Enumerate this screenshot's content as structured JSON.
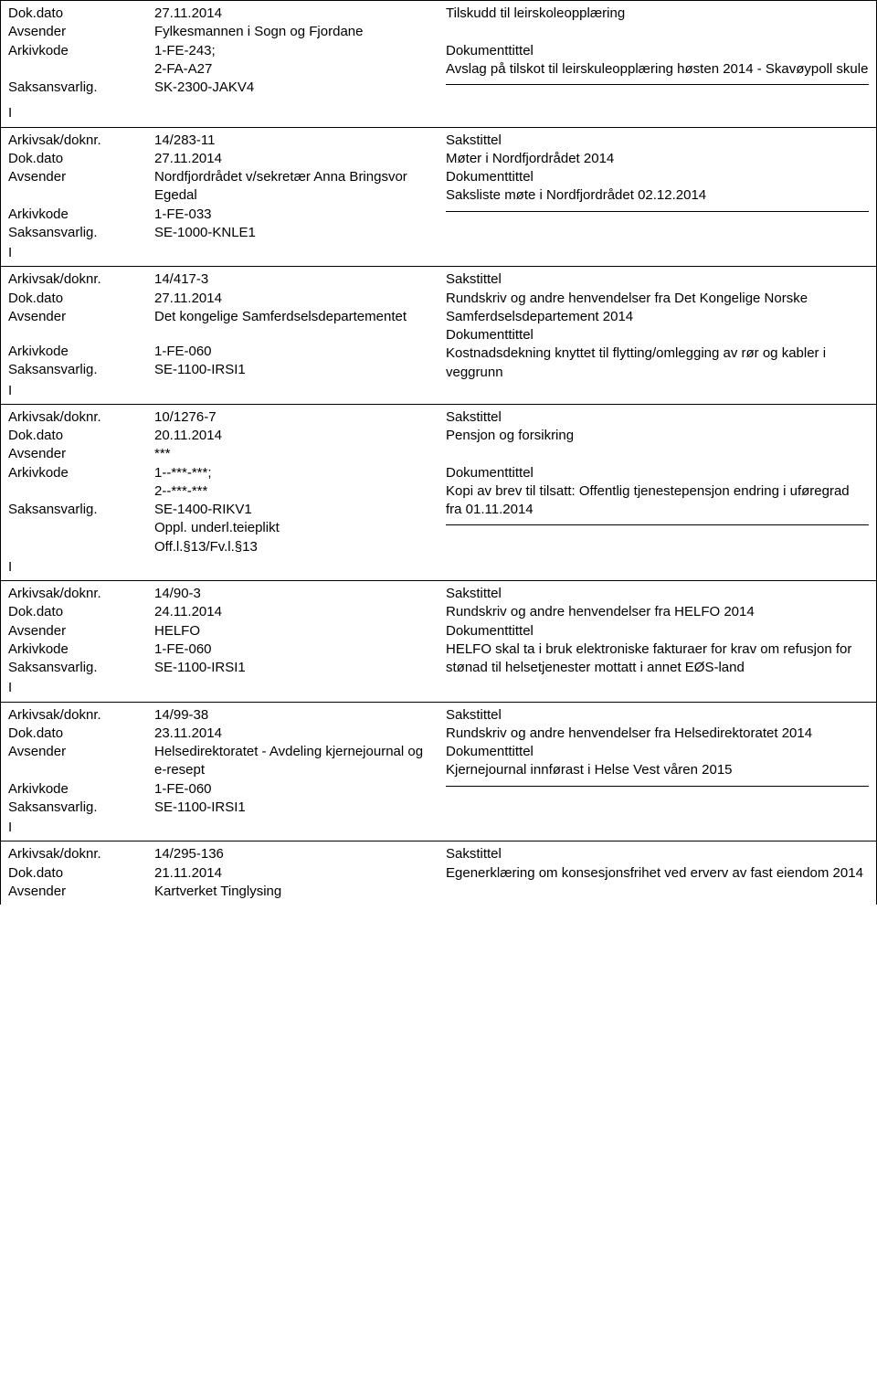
{
  "labels": {
    "dokdato": "Dok.dato",
    "avsender": "Avsender",
    "arkivkode": "Arkivkode",
    "saksansvarlig": "Saksansvarlig.",
    "arkivsak": "Arkivsak/doknr.",
    "marker": "I",
    "sakstittel": "Sakstittel",
    "dokumenttittel": "Dokumenttittel"
  },
  "top": {
    "dokdato": "27.11.2014",
    "avsender": "Fylkesmannen i Sogn og Fjordane",
    "arkivkode": "1-FE-243;\n2-FA-A27",
    "saksansvarlig": "SK-2300-JAKV4",
    "r1": "Tilskudd til leirskoleopplæring",
    "r2": "Avslag på tilskot til leirskuleopplæring høsten 2014 - Skavøypoll skule"
  },
  "records": [
    {
      "arkivsak": "14/283-11",
      "dokdato": "27.11.2014",
      "avsender": "Nordfjordrådet v/sekretær Anna Bringsvor Egedal",
      "arkivkode": "1-FE-033",
      "saksansvarlig": "SE-1000-KNLE1",
      "sakstittel_text": "Møter i Nordfjordrådet 2014",
      "doktittel_text": "Saksliste møte i Nordfjordrådet 02.12.2014",
      "has_trailing_hr": true
    },
    {
      "arkivsak": "14/417-3",
      "dokdato": "27.11.2014",
      "avsender": "Det kongelige Samferdselsdepartementet",
      "arkivkode": "1-FE-060",
      "saksansvarlig": "SE-1100-IRSI1",
      "sakstittel_text": "Rundskriv og andre henvendelser fra Det Kongelige Norske Samferdselsdepartement 2014",
      "doktittel_text": "Kostnadsdekning knyttet til flytting/omlegging av rør og kabler i veggrunn",
      "has_trailing_hr": false,
      "avsender_blank_after": true
    },
    {
      "arkivsak": "10/1276-7",
      "dokdato": "20.11.2014",
      "avsender": "***",
      "arkivkode": "1--***-***;\n2--***-***",
      "saksansvarlig": "SE-1400-RIKV1",
      "extra_lines": [
        "Oppl. underl.teieplikt",
        "Off.l.§13/Fv.l.§13"
      ],
      "sakstittel_text": "Pensjon og forsikring",
      "doktittel_text": "Kopi av brev til tilsatt: Offentlig tjenestepensjon endring i uføregrad fra 01.11.2014",
      "has_trailing_hr": true,
      "blank_before_doktittel": true
    },
    {
      "arkivsak": "14/90-3",
      "dokdato": "24.11.2014",
      "avsender": "HELFO",
      "arkivkode": "1-FE-060",
      "saksansvarlig": "SE-1100-IRSI1",
      "sakstittel_text": "Rundskriv og andre henvendelser fra HELFO 2014",
      "doktittel_text": "HELFO skal ta i bruk elektroniske fakturaer for krav om refusjon for stønad til helsetjenester mottatt i annet EØS-land",
      "has_trailing_hr": false
    },
    {
      "arkivsak": "14/99-38",
      "dokdato": "23.11.2014",
      "avsender": "Helsedirektoratet - Avdeling kjernejournal og e-resept",
      "arkivkode": "1-FE-060",
      "saksansvarlig": "SE-1100-IRSI1",
      "sakstittel_text": "Rundskriv og andre henvendelser fra Helsedirektoratet  2014",
      "doktittel_text": "Kjernejournal innførast i Helse Vest våren 2015",
      "has_trailing_hr": true
    }
  ],
  "bottom": {
    "arkivsak": "14/295-136",
    "dokdato": "21.11.2014",
    "avsender": "Kartverket Tinglysing",
    "sakstittel_text": "Egenerklæring om konsesjonsfrihet ved erverv av fast eiendom 2014"
  }
}
